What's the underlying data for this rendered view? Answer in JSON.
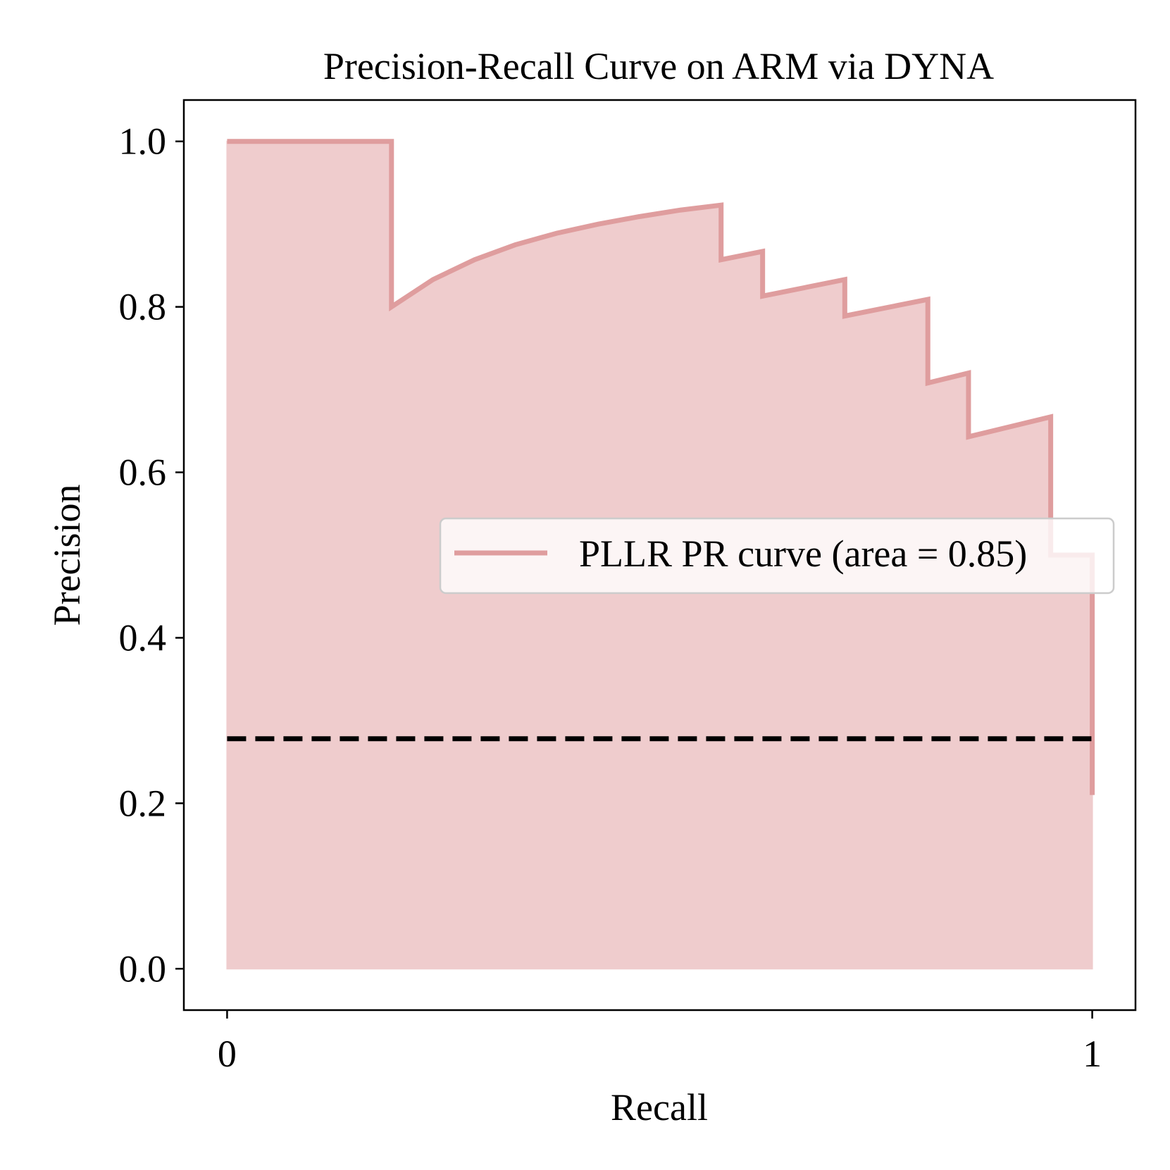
{
  "chart_data": {
    "type": "area",
    "title": "Precision-Recall Curve on ARM via DYNA",
    "xlabel": "Recall",
    "ylabel": "Precision",
    "xlim": [
      -0.05,
      1.05
    ],
    "ylim": [
      -0.05,
      1.05
    ],
    "xticks": [
      {
        "value": 0,
        "label": "0"
      },
      {
        "value": 1,
        "label": "1"
      }
    ],
    "yticks": [
      {
        "value": 0.0,
        "label": "0.0"
      },
      {
        "value": 0.2,
        "label": "0.2"
      },
      {
        "value": 0.4,
        "label": "0.4"
      },
      {
        "value": 0.6,
        "label": "0.6"
      },
      {
        "value": 0.8,
        "label": "0.8"
      },
      {
        "value": 1.0,
        "label": "1.0"
      }
    ],
    "grid": false,
    "legend_position": "center-right",
    "series": [
      {
        "name": "PLLR PR curve (area = 0.85)",
        "color": "#df9d9e",
        "fill_color": "#efcccd",
        "points": [
          [
            0.0,
            1.0
          ],
          [
            0.19,
            1.0
          ],
          [
            0.19,
            0.8
          ],
          [
            0.238,
            0.833
          ],
          [
            0.286,
            0.857
          ],
          [
            0.333,
            0.875
          ],
          [
            0.381,
            0.889
          ],
          [
            0.429,
            0.9
          ],
          [
            0.476,
            0.909
          ],
          [
            0.524,
            0.917
          ],
          [
            0.571,
            0.923
          ],
          [
            0.571,
            0.857
          ],
          [
            0.619,
            0.867
          ],
          [
            0.619,
            0.813
          ],
          [
            0.714,
            0.833
          ],
          [
            0.714,
            0.789
          ],
          [
            0.81,
            0.809
          ],
          [
            0.81,
            0.708
          ],
          [
            0.857,
            0.72
          ],
          [
            0.857,
            0.643
          ],
          [
            0.952,
            0.667
          ],
          [
            0.952,
            0.5
          ],
          [
            1.0,
            0.5
          ],
          [
            1.0,
            0.21
          ]
        ]
      }
    ],
    "baseline": {
      "value": 0.278,
      "color": "#000000",
      "style": "dashed"
    }
  }
}
